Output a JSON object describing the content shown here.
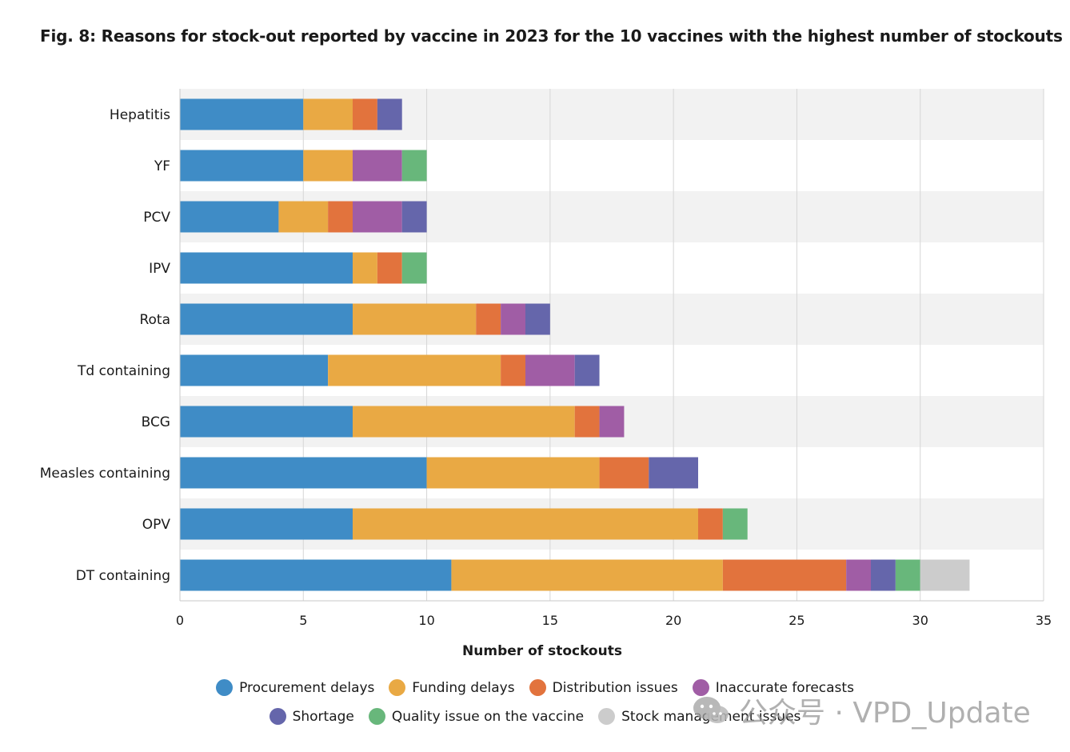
{
  "title": "Fig. 8: Reasons for stock-out reported by vaccine in 2023 for the 10 vaccines with the highest number of stockouts",
  "watermark": "公众号 · VPD_Update",
  "chart_data": {
    "type": "bar",
    "orientation": "horizontal",
    "stacked": true,
    "title": "Fig. 8: Reasons for stock-out reported by vaccine in 2023 for the 10 vaccines with the highest number of stockouts",
    "xlabel": "Number of stockouts",
    "ylabel": "",
    "xlim": [
      0,
      35
    ],
    "xticks": [
      0,
      5,
      10,
      15,
      20,
      25,
      30,
      35
    ],
    "grid": "vertical",
    "legend_position": "bottom",
    "categories": [
      "Hepatitis",
      "YF",
      "PCV",
      "IPV",
      "Rota",
      "Td containing",
      "BCG",
      "Measles containing",
      "OPV",
      "DT containing"
    ],
    "series": [
      {
        "name": "Procurement delays",
        "color": "#3f8cc6",
        "values": [
          5,
          5,
          4,
          7,
          7,
          6,
          7,
          10,
          7,
          11
        ]
      },
      {
        "name": "Funding delays",
        "color": "#e9a944",
        "values": [
          2,
          2,
          2,
          1,
          5,
          7,
          9,
          7,
          14,
          11
        ]
      },
      {
        "name": "Distribution issues",
        "color": "#e2733d",
        "values": [
          1,
          0,
          1,
          1,
          1,
          1,
          1,
          2,
          1,
          5
        ]
      },
      {
        "name": "Inaccurate forecasts",
        "color": "#a05da5",
        "values": [
          0,
          2,
          2,
          0,
          1,
          2,
          1,
          0,
          0,
          1
        ]
      },
      {
        "name": "Shortage",
        "color": "#6566ab",
        "values": [
          1,
          0,
          1,
          0,
          1,
          1,
          0,
          2,
          0,
          1
        ]
      },
      {
        "name": "Quality issue on the vaccine",
        "color": "#68b77b",
        "values": [
          0,
          1,
          0,
          1,
          0,
          0,
          0,
          0,
          1,
          1
        ]
      },
      {
        "name": "Stock management issues",
        "color": "#cccccc",
        "values": [
          0,
          0,
          0,
          0,
          0,
          0,
          0,
          0,
          0,
          2
        ]
      }
    ]
  }
}
